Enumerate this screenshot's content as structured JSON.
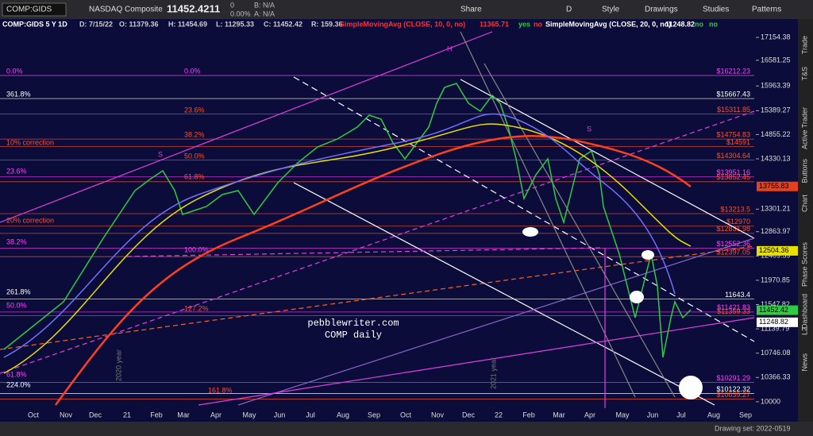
{
  "toolbar": {
    "symbol": "COMP:GIDS",
    "name": "NASDAQ Composite",
    "last": "11452.4211",
    "change": "0",
    "change_pct": "0.00%",
    "bid": "B: N/A",
    "ask": "A: N/A",
    "share": "Share",
    "period": "D",
    "style": "Style",
    "drawings": "Drawings",
    "studies": "Studies",
    "patterns": "Patterns"
  },
  "header": {
    "info": "COMP:GIDS 5 Y 1D",
    "date": "D: 7/15/22",
    "open": "O: 11379.36",
    "high": "H: 11454.69",
    "low": "L: 11295.33",
    "close": "C: 11452.42",
    "range": "R: 159.36",
    "sma10": "SimpleMovingAvg (CLOSE, 10, 0, no)",
    "sma10_value": "11365.71",
    "sma10_flag1": "yes",
    "sma10_flag2": "no",
    "sma20": "SimpleMovingAvg (CLOSE, 20, 0, no)",
    "sma20_value": "11248.82",
    "sma20_flag1": "no",
    "sma20_flag2": "no"
  },
  "price_axis": {
    "ylim": [
      9905,
      17297
    ],
    "log": true,
    "ticks": [
      17154.38,
      16581.25,
      15963.39,
      15389.27,
      14855.22,
      14330.13,
      13301.21,
      12863.97,
      12409.59,
      11970.85,
      11547.82,
      11139.79,
      10746.08,
      10366.33,
      10000
    ],
    "badges": [
      {
        "value": 13755.83,
        "label": "13755.83",
        "color": "#e8401c"
      },
      {
        "value": 12504.36,
        "label": "12504.36",
        "color": "#e8e000"
      },
      {
        "value": 11452.42,
        "label": "11452.42",
        "color": "#2ecc40"
      },
      {
        "value": 11248.82,
        "label": "11248.82",
        "color": "#ffffff"
      }
    ]
  },
  "levels": [
    {
      "value": 16212.23,
      "label": "$16212.23",
      "color": "#ff40ff"
    },
    {
      "value": 15667.43,
      "label": "$15667.43",
      "color": "#ffffff"
    },
    {
      "value": 15311.85,
      "label": "$15311.85",
      "color": "#ff5030"
    },
    {
      "value": 14754.83,
      "label": "$14754.83",
      "color": "#ff5030"
    },
    {
      "value": 14591,
      "label": "$14591",
      "color": "#ff5030"
    },
    {
      "value": 14304.64,
      "label": "$14304.64",
      "color": "#ff5030"
    },
    {
      "value": 13951.16,
      "label": "$13951.16",
      "color": "#ff40ff"
    },
    {
      "value": 13852.45,
      "label": "$13852.45",
      "color": "#ff5030"
    },
    {
      "value": 13213.5,
      "label": "$13213.5",
      "color": "#ff5030"
    },
    {
      "value": 12970,
      "label": "$12970",
      "color": "#ff5030"
    },
    {
      "value": 12831.98,
      "label": "$12831.98",
      "color": "#ff5030"
    },
    {
      "value": 12552.36,
      "label": "$12552.36",
      "color": "#ff40ff"
    },
    {
      "value": 12397.05,
      "label": "$12397.05",
      "color": "#ff5030"
    },
    {
      "value": 11643.4,
      "label": "11643.4",
      "color": "#ffffff"
    },
    {
      "value": 11421.83,
      "label": "$11421.83",
      "color": "#ff40ff"
    },
    {
      "value": 11359.33,
      "label": "$11359.33",
      "color": "#ff5030"
    },
    {
      "value": 10291.29,
      "label": "$10291.29",
      "color": "#ff40ff"
    },
    {
      "value": 10122.32,
      "label": "$10122.32",
      "color": "#ffffff"
    },
    {
      "value": 10039.27,
      "label": "$10039.27",
      "color": "#ff5030"
    }
  ],
  "left_labels": [
    "0.0%",
    "0.0%",
    "361.8%",
    "23.6%",
    "38.2%",
    "10% correction",
    "50.0%",
    "23.6%",
    "61.8%",
    "20% correction",
    "38.2%",
    "100.0%",
    "261.8%",
    "50.0%",
    "127.2%",
    "61.8%",
    "224.0%",
    "161.8%"
  ],
  "annotations": {
    "h": "H",
    "s1": "S",
    "s2": "S",
    "site": "pebblewriter.com",
    "caption": "COMP daily",
    "year2020": "2020 year",
    "year2021": "2021 year"
  },
  "months": [
    "Oct",
    "Nov",
    "Dec",
    "21",
    "Feb",
    "Mar",
    "Apr",
    "May",
    "Jun",
    "Jul",
    "Aug",
    "Sep",
    "Oct",
    "Nov",
    "Dec",
    "22",
    "Feb",
    "Mar",
    "Apr",
    "May",
    "Jun",
    "Jul",
    "Aug",
    "Sep"
  ],
  "tabs": [
    "Trade",
    "T&S",
    "Active Trader",
    "Buttons",
    "Chart",
    "Phase Scores",
    "Dashboard",
    "L2",
    "News"
  ],
  "footer": {
    "drawing_set": "Drawing set: 2022-0519"
  }
}
